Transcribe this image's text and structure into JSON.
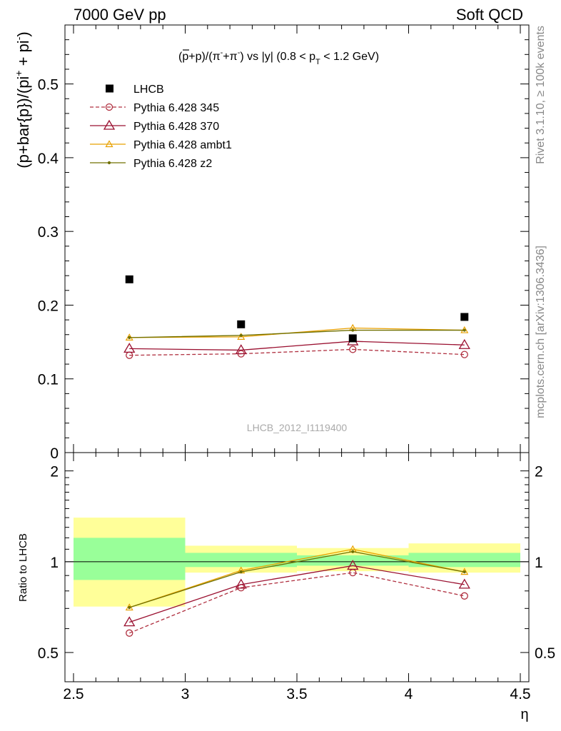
{
  "header": {
    "left": "7000 GeV pp",
    "right": "Soft QCD"
  },
  "side": {
    "rivet": "Rivet 3.1.10, ≥ 100k events",
    "mcplots": "mcplots.cern.ch [arXiv:1306.3436]"
  },
  "chart_data": [
    {
      "type": "line",
      "title_parts": {
        "pre": "(",
        "pbar": "p",
        "mid": "+p)/(π",
        "minus": "-",
        "plus_pi": "+π",
        "plus": "-",
        "post": ") vs |y| (0.8 < p",
        "sub": "T",
        "tail": " < 1.2 GeV)"
      },
      "ylabel": "(p+bar{p})/(pi⁺ + pi⁻)",
      "ylabel_parts": {
        "main": "(p+bar{p})/(pi",
        "sup1": "+",
        "mid": " + pi",
        "sup2": "-",
        "end": ")"
      },
      "xlabel": "",
      "xlim": [
        2.5,
        4.5
      ],
      "ylim": [
        0,
        0.58
      ],
      "yticks": [
        0,
        0.1,
        0.2,
        0.3,
        0.4,
        0.5
      ],
      "ytick_labels": [
        "0",
        "0.1",
        "0.2",
        "0.3",
        "0.4",
        "0.5"
      ],
      "watermark": "LHCB_2012_I1119400",
      "legend_position": "top-left",
      "x": [
        2.75,
        3.25,
        3.75,
        4.25
      ],
      "data": {
        "name": "LHCB",
        "color": "#000000",
        "values": [
          0.235,
          0.174,
          0.155,
          0.184
        ]
      },
      "series": [
        {
          "name": "Pythia 6.428 345",
          "color": "#b03040",
          "dashed": true,
          "marker": "circle",
          "values": [
            0.132,
            0.134,
            0.14,
            0.133
          ]
        },
        {
          "name": "Pythia 6.428 370",
          "color": "#9a1030",
          "dashed": false,
          "marker": "triangle",
          "values": [
            0.141,
            0.139,
            0.151,
            0.146
          ]
        },
        {
          "name": "Pythia 6.428 ambt1",
          "color": "#e8a000",
          "dashed": false,
          "marker": "triangle-small",
          "values": [
            0.156,
            0.157,
            0.169,
            0.166
          ]
        },
        {
          "name": "Pythia 6.428 z2",
          "color": "#707000",
          "dashed": false,
          "marker": "dot",
          "values": [
            0.156,
            0.159,
            0.166,
            0.166
          ]
        }
      ]
    },
    {
      "type": "line",
      "ylabel": "Ratio to LHCB",
      "xlabel": "η",
      "xlim": [
        2.5,
        4.5
      ],
      "ylim": [
        0.4,
        2.3
      ],
      "yscale": "log",
      "yticks": [
        0.5,
        1,
        2
      ],
      "ytick_labels": [
        "0.5",
        "1",
        "2"
      ],
      "xticks": [
        2.5,
        3,
        3.5,
        4,
        4.5
      ],
      "xtick_labels": [
        "2.5",
        "3",
        "3.5",
        "4",
        "4.5"
      ],
      "bands": {
        "edges": [
          2.5,
          3.0,
          3.5,
          4.0,
          4.5
        ],
        "inner": [
          [
            0.87,
            1.2
          ],
          [
            0.96,
            1.07
          ],
          [
            0.97,
            1.05
          ],
          [
            0.96,
            1.07
          ]
        ],
        "outer": [
          [
            0.71,
            1.4
          ],
          [
            0.92,
            1.13
          ],
          [
            0.93,
            1.11
          ],
          [
            0.92,
            1.15
          ]
        ],
        "inner_color": "#99ff99",
        "outer_color": "#ffff99"
      },
      "x": [
        2.75,
        3.25,
        3.75,
        4.25
      ],
      "series": [
        {
          "name": "Pythia 6.428 345",
          "color": "#b03040",
          "dashed": true,
          "marker": "circle",
          "values": [
            0.58,
            0.82,
            0.92,
            0.77
          ]
        },
        {
          "name": "Pythia 6.428 370",
          "color": "#9a1030",
          "dashed": false,
          "marker": "triangle",
          "values": [
            0.63,
            0.84,
            0.97,
            0.84
          ]
        },
        {
          "name": "Pythia 6.428 ambt1",
          "color": "#e8a000",
          "dashed": false,
          "marker": "triangle-small",
          "values": [
            0.705,
            0.935,
            1.1,
            0.925
          ]
        },
        {
          "name": "Pythia 6.428 z2",
          "color": "#707000",
          "dashed": false,
          "marker": "dot",
          "values": [
            0.705,
            0.925,
            1.08,
            0.925
          ]
        }
      ]
    }
  ]
}
